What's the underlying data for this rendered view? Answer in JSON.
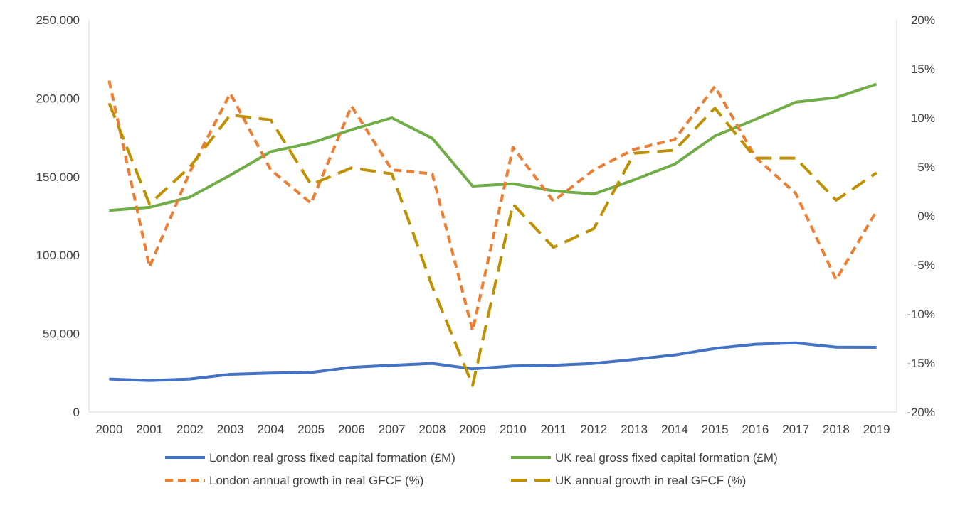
{
  "chart_data": {
    "type": "line",
    "title": "",
    "categories": [
      "2000",
      "2001",
      "2002",
      "2003",
      "2004",
      "2005",
      "2006",
      "2007",
      "2008",
      "2009",
      "2010",
      "2011",
      "2012",
      "2013",
      "2014",
      "2015",
      "2016",
      "2017",
      "2018",
      "2019"
    ],
    "left_axis": {
      "ylim": [
        0,
        250000
      ],
      "ticks": [
        0,
        50000,
        100000,
        150000,
        200000,
        250000
      ],
      "tick_labels": [
        "0",
        "50,000",
        "100,000",
        "150,000",
        "200,000",
        "250,000"
      ]
    },
    "right_axis": {
      "ylim": [
        -20,
        20
      ],
      "ticks": [
        -20,
        -15,
        -10,
        -5,
        0,
        5,
        10,
        15,
        20
      ],
      "tick_labels": [
        "-20%",
        "-15%",
        "-10%",
        "-5%",
        "0%",
        "5%",
        "10%",
        "15%",
        "20%"
      ]
    },
    "legend_position": "bottom",
    "series": [
      {
        "name": "London real gross fixed capital formation (£M)",
        "axis": "left",
        "style": "solid",
        "color": "#4472C4",
        "values": [
          21000,
          20000,
          21000,
          24000,
          24800,
          25200,
          28500,
          29800,
          31000,
          27500,
          29300,
          29800,
          31000,
          33500,
          36300,
          40500,
          43200,
          44000,
          41300,
          41200
        ]
      },
      {
        "name": "UK real gross fixed capital formation (£M)",
        "axis": "left",
        "style": "solid",
        "color": "#70AD47",
        "values": [
          128500,
          130500,
          137000,
          151000,
          166000,
          171500,
          180000,
          187500,
          174500,
          144000,
          145500,
          141000,
          139000,
          148000,
          158000,
          176000,
          186500,
          197500,
          200500,
          209000
        ]
      },
      {
        "name": "London annual growth in real GFCF (%)",
        "axis": "right",
        "style": "dashed",
        "color": "#ED7D31",
        "values": [
          13.8,
          -5.2,
          4.5,
          12.5,
          4.7,
          1.3,
          11.2,
          4.7,
          4.3,
          -11.7,
          7.0,
          1.5,
          4.7,
          6.8,
          7.8,
          13.2,
          6.0,
          2.3,
          -6.5,
          0.5
        ]
      },
      {
        "name": "UK annual growth in real GFCF (%)",
        "axis": "right",
        "style": "dashed",
        "color": "#BF9000",
        "values": [
          11.5,
          1.2,
          5.0,
          10.3,
          9.8,
          3.2,
          4.9,
          4.3,
          -7.2,
          -17.3,
          1.2,
          -3.2,
          -1.3,
          6.4,
          6.7,
          11.0,
          5.9,
          5.9,
          1.6,
          4.4
        ]
      }
    ]
  }
}
